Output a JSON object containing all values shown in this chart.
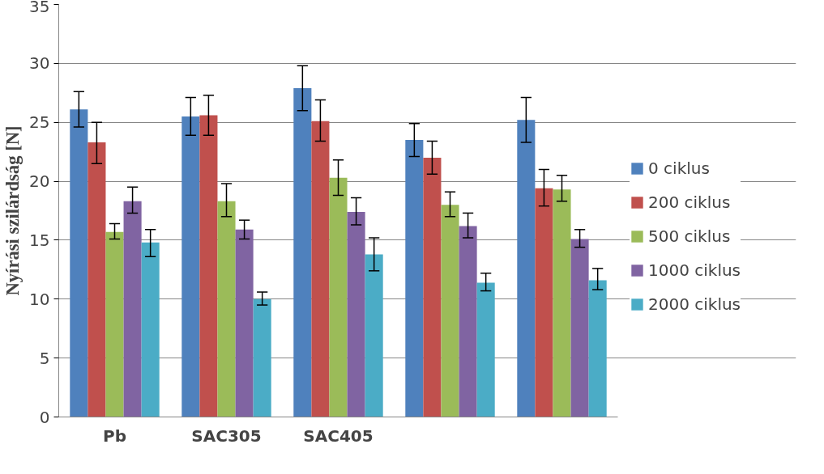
{
  "chart_data": {
    "type": "bar",
    "ylabel": "Nyírási szilárdság [N]",
    "categories": [
      "Pb",
      "SAC305",
      "SAC405",
      null,
      null
    ],
    "ylim": [
      0,
      35
    ],
    "yticks": [
      0,
      5,
      10,
      15,
      20,
      25,
      30,
      35
    ],
    "grid": "y",
    "legend": "right",
    "series": [
      {
        "name": "0 ciklus",
        "color": "#4f81bd",
        "values": [
          26.1,
          25.5,
          27.9,
          23.5,
          25.2
        ],
        "errors": [
          [
            24.6,
            27.6
          ],
          [
            23.9,
            27.1
          ],
          [
            26.0,
            29.8
          ],
          [
            22.1,
            24.9
          ],
          [
            23.3,
            27.1
          ]
        ]
      },
      {
        "name": "200 ciklus",
        "color": "#c0504d",
        "values": [
          23.3,
          25.6,
          25.1,
          22.0,
          19.4
        ],
        "errors": [
          [
            21.5,
            25.0
          ],
          [
            23.9,
            27.3
          ],
          [
            23.4,
            26.9
          ],
          [
            20.6,
            23.4
          ],
          [
            17.9,
            21.0
          ]
        ]
      },
      {
        "name": "500 ciklus",
        "color": "#9bbb59",
        "values": [
          15.7,
          18.3,
          20.3,
          18.0,
          19.3
        ],
        "errors": [
          [
            15.1,
            16.4
          ],
          [
            17.0,
            19.8
          ],
          [
            18.8,
            21.8
          ],
          [
            17.0,
            19.1
          ],
          [
            18.3,
            20.5
          ]
        ]
      },
      {
        "name": "1000 ciklus",
        "color": "#8064a2",
        "values": [
          18.3,
          15.9,
          17.4,
          16.2,
          15.1
        ],
        "errors": [
          [
            17.3,
            19.5
          ],
          [
            15.1,
            16.7
          ],
          [
            16.3,
            18.6
          ],
          [
            15.2,
            17.3
          ],
          [
            14.4,
            15.9
          ]
        ]
      },
      {
        "name": "2000 ciklus",
        "color": "#4bacc6",
        "values": [
          14.8,
          10.0,
          13.8,
          11.4,
          11.6
        ],
        "errors": [
          [
            13.6,
            15.9
          ],
          [
            9.5,
            10.6
          ],
          [
            12.4,
            15.2
          ],
          [
            10.7,
            12.2
          ],
          [
            10.8,
            12.6
          ]
        ]
      }
    ]
  }
}
